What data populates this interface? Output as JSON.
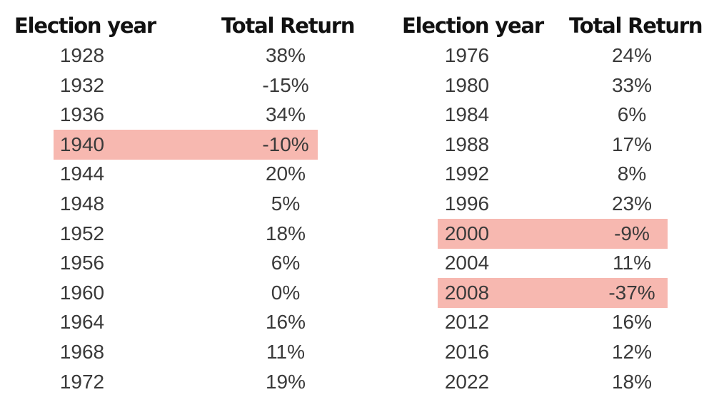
{
  "chart_data": {
    "type": "table",
    "columns": [
      "Election year",
      "Total Return",
      "Election year",
      "Total Return"
    ],
    "highlight_color": "#f7b8b0",
    "left": {
      "header": {
        "year": "Election year",
        "ret": "Total Return"
      },
      "rows": [
        {
          "year": "1928",
          "ret": "38%"
        },
        {
          "year": "1932",
          "ret": "-15%"
        },
        {
          "year": "1936",
          "ret": "34%"
        },
        {
          "year": "1940",
          "ret": "-10%",
          "highlighted": true
        },
        {
          "year": "1944",
          "ret": "20%"
        },
        {
          "year": "1948",
          "ret": "5%"
        },
        {
          "year": "1952",
          "ret": "18%"
        },
        {
          "year": "1956",
          "ret": "6%"
        },
        {
          "year": "1960",
          "ret": "0%"
        },
        {
          "year": "1964",
          "ret": "16%"
        },
        {
          "year": "1968",
          "ret": "11%"
        },
        {
          "year": "1972",
          "ret": "19%"
        }
      ]
    },
    "right": {
      "header": {
        "year": "Election year",
        "ret": "Total Return"
      },
      "rows": [
        {
          "year": "1976",
          "ret": "24%"
        },
        {
          "year": "1980",
          "ret": "33%"
        },
        {
          "year": "1984",
          "ret": "6%"
        },
        {
          "year": "1988",
          "ret": "17%"
        },
        {
          "year": "1992",
          "ret": "8%"
        },
        {
          "year": "1996",
          "ret": "23%"
        },
        {
          "year": "2000",
          "ret": "-9%",
          "highlighted": true
        },
        {
          "year": "2004",
          "ret": "11%"
        },
        {
          "year": "2008",
          "ret": "-37%",
          "highlighted": true
        },
        {
          "year": "2012",
          "ret": "16%"
        },
        {
          "year": "2016",
          "ret": "12%"
        },
        {
          "year": "2022",
          "ret": "18%"
        }
      ]
    }
  }
}
